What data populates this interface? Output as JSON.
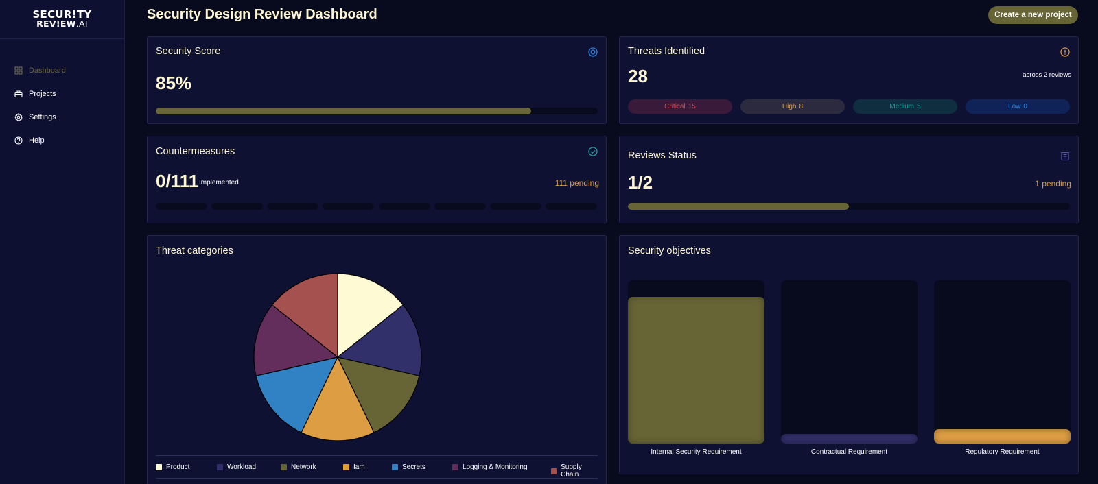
{
  "brand": {
    "line1": "SECUR!TY",
    "line2": "REV!EW",
    "line2_suffix": ".AI"
  },
  "nav": {
    "items": [
      {
        "label": "Dashboard",
        "icon": "grid-icon",
        "active": true
      },
      {
        "label": "Projects",
        "icon": "briefcase-icon"
      },
      {
        "label": "Settings",
        "icon": "gear-icon"
      },
      {
        "label": "Help",
        "icon": "help-circle-icon"
      }
    ]
  },
  "header": {
    "title": "Security Design Review Dashboard",
    "create_label": "Create a new project"
  },
  "security_score": {
    "title": "Security Score",
    "value": "85%",
    "progress": 0.85,
    "icon": "target-icon"
  },
  "threats": {
    "title": "Threats Identified",
    "value": "28",
    "subtitle": "across 2 reviews",
    "icon": "alert-circle-icon",
    "levels": [
      {
        "label": "Critical",
        "count": "15",
        "color": "#d94a55",
        "bg": "#3a1a3a"
      },
      {
        "label": "High",
        "count": "8",
        "color": "#dd9e43",
        "bg": "#2b2a3e"
      },
      {
        "label": "Medium",
        "count": "5",
        "color": "#1aa198",
        "bg": "#0f2e40"
      },
      {
        "label": "Low",
        "count": "0",
        "color": "#2a86e0",
        "bg": "#0f2358"
      }
    ]
  },
  "countermeasures": {
    "title": "Countermeasures",
    "value": "0/111",
    "label": "Implemented",
    "pending": "111 pending",
    "implemented_fraction": 0,
    "icon": "check-circle-icon"
  },
  "reviews": {
    "title": "Reviews Status",
    "value": "1/2",
    "pending": "1 pending",
    "progress": 0.5,
    "icon": "document-icon"
  },
  "threat_categories": {
    "title": "Threat categories"
  },
  "security_objectives": {
    "title": "Security objectives"
  },
  "chart_data": [
    {
      "type": "pie",
      "title": "Threat categories",
      "categories": [
        "Product",
        "Workload",
        "Network",
        "Iam",
        "Secrets",
        "Logging & Monitoring",
        "Supply Chain"
      ],
      "values": [
        1,
        1,
        1,
        1,
        1,
        1,
        1
      ],
      "colors": [
        "#fefad4",
        "#32306a",
        "#676535",
        "#dd9e43",
        "#3182c4",
        "#632d5c",
        "#a55150"
      ],
      "legend": "bottom"
    },
    {
      "type": "bar",
      "title": "Security objectives",
      "categories": [
        "Internal Security Requirement",
        "Contractual Requirement",
        "Regulatory Requirement"
      ],
      "values": [
        0.9,
        0.06,
        0.09
      ],
      "colors": [
        "#676535",
        "#32306a",
        "#dd9e43"
      ]
    }
  ],
  "theme": {
    "accent": "#676535",
    "orange": "#dd9e43",
    "bg": "#080a1e",
    "card": "#0e1131"
  }
}
